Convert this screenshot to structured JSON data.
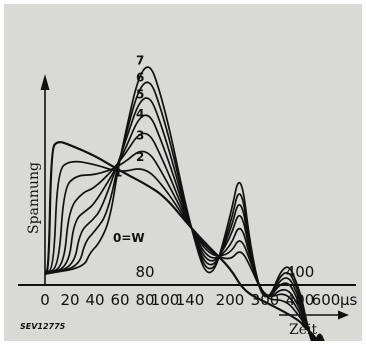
{
  "chart_data": {
    "type": "line",
    "title": "",
    "ylabel": "Spannung",
    "xlabel": "Zeit",
    "x_unit": "µs",
    "x_ticks": [
      "0",
      "20",
      "40",
      "60",
      "80",
      "100",
      "140",
      "200",
      "300",
      "400",
      "600"
    ],
    "in_plot_labels": [
      "80",
      "400"
    ],
    "curve_labels": [
      "0=W",
      "1",
      "2",
      "3",
      "4",
      "5",
      "6",
      "7"
    ],
    "x_scale": "nonlinear",
    "grid": false,
    "legend": "none",
    "figure_code": "SEV12775",
    "series": [
      {
        "name": "0=W",
        "points": [
          [
            0,
            0.0
          ],
          [
            3,
            0.03
          ],
          [
            5,
            0.58
          ],
          [
            10,
            0.62
          ],
          [
            20,
            0.6
          ],
          [
            40,
            0.55
          ],
          [
            60,
            0.48
          ],
          [
            80,
            0.42
          ],
          [
            100,
            0.36
          ],
          [
            140,
            0.22
          ],
          [
            170,
            0.12
          ],
          [
            200,
            0.03
          ],
          [
            240,
            -0.08
          ],
          [
            300,
            -0.13
          ],
          [
            360,
            -0.18
          ],
          [
            400,
            -0.22
          ],
          [
            440,
            -0.25
          ],
          [
            500,
            -0.28
          ],
          [
            550,
            -0.33
          ],
          [
            600,
            -0.35
          ]
        ]
      },
      {
        "name": "1",
        "points": [
          [
            0,
            0.0
          ],
          [
            7,
            0.03
          ],
          [
            10,
            0.48
          ],
          [
            20,
            0.53
          ],
          [
            40,
            0.51
          ],
          [
            60,
            0.47
          ],
          [
            80,
            0.5
          ],
          [
            100,
            0.4
          ],
          [
            140,
            0.22
          ],
          [
            170,
            0.1
          ],
          [
            200,
            0.06
          ],
          [
            230,
            0.12
          ],
          [
            260,
            0.03
          ],
          [
            300,
            -0.12
          ],
          [
            360,
            -0.12
          ],
          [
            400,
            -0.2
          ],
          [
            440,
            -0.24
          ],
          [
            500,
            -0.29
          ],
          [
            550,
            -0.32
          ],
          [
            600,
            -0.34
          ]
        ]
      },
      {
        "name": "2",
        "points": [
          [
            0,
            0.0
          ],
          [
            11,
            0.03
          ],
          [
            15,
            0.4
          ],
          [
            25,
            0.46
          ],
          [
            40,
            0.46
          ],
          [
            60,
            0.5
          ],
          [
            80,
            0.6
          ],
          [
            100,
            0.45
          ],
          [
            140,
            0.22
          ],
          [
            170,
            0.08
          ],
          [
            200,
            0.09
          ],
          [
            230,
            0.18
          ],
          [
            260,
            0.05
          ],
          [
            300,
            -0.12
          ],
          [
            360,
            -0.08
          ],
          [
            400,
            -0.18
          ],
          [
            440,
            -0.24
          ],
          [
            500,
            -0.3
          ],
          [
            550,
            -0.31
          ],
          [
            600,
            -0.34
          ]
        ]
      },
      {
        "name": "3",
        "points": [
          [
            0,
            0.0
          ],
          [
            15,
            0.03
          ],
          [
            19,
            0.3
          ],
          [
            30,
            0.38
          ],
          [
            40,
            0.4
          ],
          [
            60,
            0.52
          ],
          [
            80,
            0.7
          ],
          [
            100,
            0.51
          ],
          [
            140,
            0.22
          ],
          [
            170,
            0.05
          ],
          [
            200,
            0.12
          ],
          [
            230,
            0.25
          ],
          [
            260,
            0.06
          ],
          [
            300,
            -0.13
          ],
          [
            360,
            -0.05
          ],
          [
            400,
            -0.16
          ],
          [
            440,
            -0.23
          ],
          [
            500,
            -0.31
          ],
          [
            550,
            -0.3
          ],
          [
            600,
            -0.34
          ]
        ]
      },
      {
        "name": "4",
        "points": [
          [
            0,
            0.0
          ],
          [
            19,
            0.03
          ],
          [
            23,
            0.25
          ],
          [
            34,
            0.3
          ],
          [
            40,
            0.33
          ],
          [
            60,
            0.52
          ],
          [
            80,
            0.8
          ],
          [
            100,
            0.58
          ],
          [
            140,
            0.22
          ],
          [
            170,
            0.02
          ],
          [
            200,
            0.16
          ],
          [
            230,
            0.32
          ],
          [
            260,
            0.07
          ],
          [
            300,
            -0.14
          ],
          [
            360,
            -0.01
          ],
          [
            400,
            -0.14
          ],
          [
            440,
            -0.22
          ],
          [
            500,
            -0.32
          ],
          [
            550,
            -0.29
          ],
          [
            600,
            -0.34
          ]
        ]
      },
      {
        "name": "5",
        "points": [
          [
            0,
            0.0
          ],
          [
            23,
            0.03
          ],
          [
            28,
            0.2
          ],
          [
            38,
            0.25
          ],
          [
            45,
            0.3
          ],
          [
            60,
            0.54
          ],
          [
            80,
            0.89
          ],
          [
            100,
            0.65
          ],
          [
            140,
            0.22
          ],
          [
            170,
            -0.01
          ],
          [
            200,
            0.19
          ],
          [
            230,
            0.38
          ],
          [
            260,
            0.08
          ],
          [
            300,
            -0.15
          ],
          [
            360,
            0.02
          ],
          [
            400,
            -0.12
          ],
          [
            440,
            -0.21
          ],
          [
            500,
            -0.33
          ],
          [
            550,
            -0.28
          ],
          [
            600,
            -0.34
          ]
        ]
      },
      {
        "name": "6",
        "points": [
          [
            0,
            0.0
          ],
          [
            27,
            0.03
          ],
          [
            32,
            0.15
          ],
          [
            40,
            0.2
          ],
          [
            50,
            0.28
          ],
          [
            60,
            0.55
          ],
          [
            80,
            0.97
          ],
          [
            100,
            0.72
          ],
          [
            140,
            0.22
          ],
          [
            170,
            -0.04
          ],
          [
            200,
            0.22
          ],
          [
            230,
            0.44
          ],
          [
            260,
            0.09
          ],
          [
            300,
            -0.16
          ],
          [
            360,
            0.05
          ],
          [
            400,
            -0.1
          ],
          [
            440,
            -0.2
          ],
          [
            500,
            -0.34
          ],
          [
            550,
            -0.27
          ],
          [
            600,
            -0.34
          ]
        ]
      },
      {
        "name": "7",
        "points": [
          [
            0,
            0.0
          ],
          [
            31,
            0.03
          ],
          [
            36,
            0.1
          ],
          [
            43,
            0.14
          ],
          [
            52,
            0.25
          ],
          [
            60,
            0.55
          ],
          [
            80,
            1.05
          ],
          [
            100,
            0.78
          ],
          [
            140,
            0.22
          ],
          [
            170,
            -0.07
          ],
          [
            200,
            0.26
          ],
          [
            230,
            0.5
          ],
          [
            260,
            0.1
          ],
          [
            300,
            -0.17
          ],
          [
            360,
            0.08
          ],
          [
            400,
            -0.08
          ],
          [
            440,
            -0.19
          ],
          [
            500,
            -0.35
          ],
          [
            550,
            -0.26
          ],
          [
            600,
            -0.34
          ]
        ]
      }
    ]
  }
}
